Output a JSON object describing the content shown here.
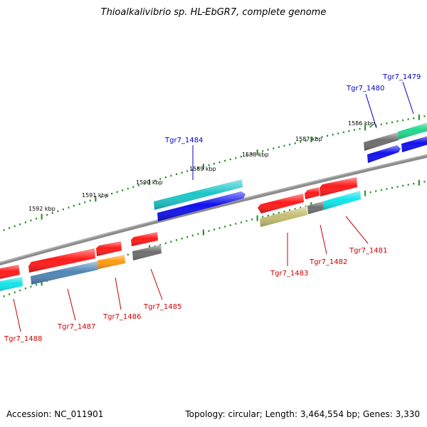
{
  "header": {
    "title": "Thioalkalivibrio sp. HL-EbGR7, complete genome"
  },
  "footer": {
    "accession": "Accession: NC_011901",
    "topology": "Topology: circular; Length: 3,464,554 bp; Genes: 3,330"
  },
  "ruler_labels": [
    "1586 kbp",
    "1587 kbp",
    "1588 kbp",
    "1589 kbp",
    "1590 kbp",
    "1591 kbp",
    "1592 kbp"
  ],
  "genes_top_strand": [
    "Tgr7_1479",
    "Tgr7_1480",
    "Tgr7_1484"
  ],
  "genes_bottom_strand": [
    "Tgr7_1481",
    "Tgr7_1482",
    "Tgr7_1483",
    "Tgr7_1485",
    "Tgr7_1486",
    "Tgr7_1487",
    "Tgr7_1488"
  ],
  "colors": {
    "backbone": "#8c8c8c",
    "tick": "#1f8a1f",
    "red": "#ff1a1a",
    "cyan": "#10e6ea",
    "teal": "#1ec6c8",
    "blue": "#1010ee",
    "gray": "#6e6e6e",
    "green": "#22d88e",
    "steelblue": "#4f86b4",
    "orange": "#ff9a10",
    "khaki": "#c4bd72",
    "label_top": "#0000cc",
    "label_bottom": "#cc0000"
  }
}
